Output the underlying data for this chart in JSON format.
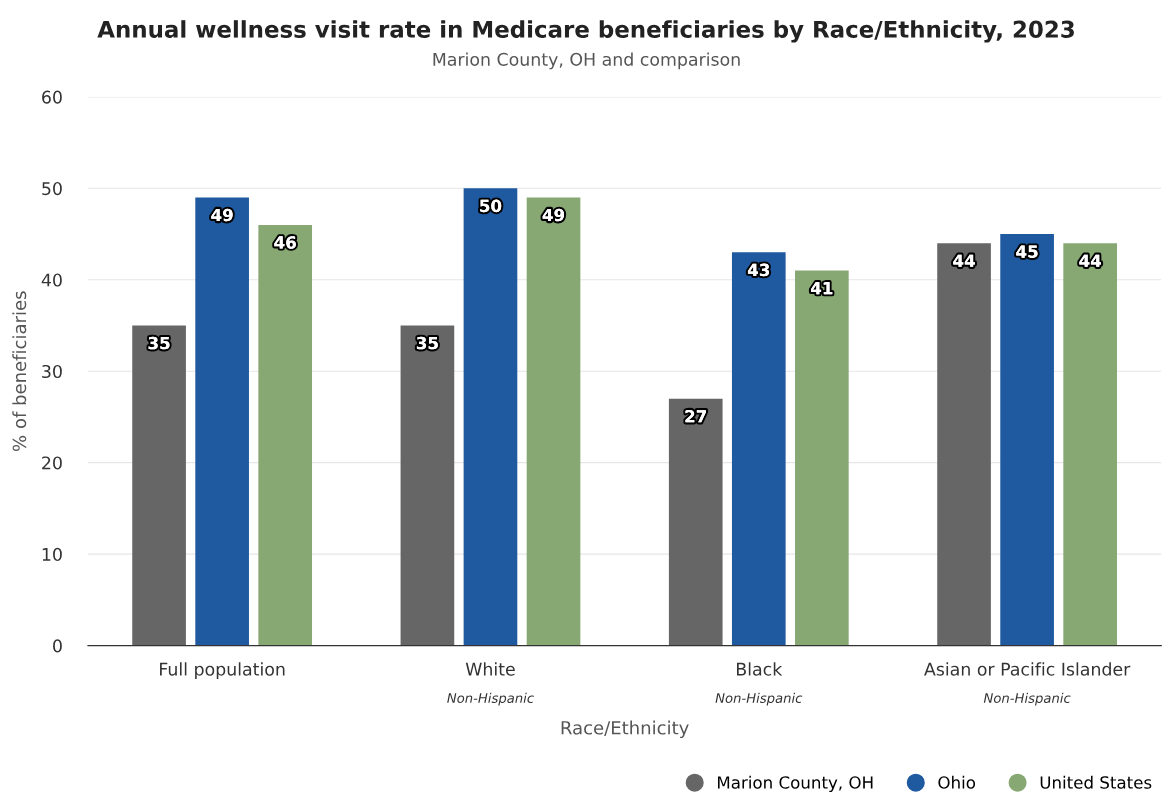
{
  "chart_data": {
    "type": "bar",
    "title": "Annual wellness visit rate in Medicare beneficiaries by Race/Ethnicity, 2023",
    "subtitle": "Marion County, OH and comparison",
    "xlabel": "Race/Ethnicity",
    "ylabel": "% of beneficiaries",
    "categories": [
      "Full population",
      "White\nNon-Hispanic",
      "Black\nNon-Hispanic",
      "Asian or Pacific Islander\nNon-Hispanic"
    ],
    "series": [
      {
        "name": "Marion County, OH",
        "color": "#666666",
        "values": [
          35,
          35,
          27,
          44
        ]
      },
      {
        "name": "Ohio",
        "color": "#1f5aa0",
        "values": [
          49,
          50,
          43,
          45
        ]
      },
      {
        "name": "United States",
        "color": "#87a873",
        "values": [
          46,
          49,
          41,
          44
        ]
      }
    ],
    "ylim": [
      0,
      60
    ],
    "yticks": [
      0,
      10,
      20,
      30,
      40,
      50,
      60
    ],
    "grid": "y",
    "legend": "bottom right",
    "data_labels": true
  }
}
